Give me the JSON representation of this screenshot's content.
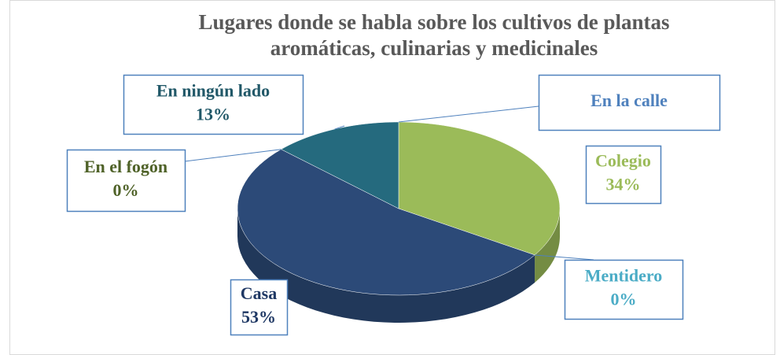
{
  "chart_data": {
    "type": "pie3d",
    "title": "Lugares donde se habla sobre los cultivos de plantas aromáticas, culinarias y medicinales",
    "categories": [
      "En la calle",
      "Colegio",
      "Mentidero",
      "Casa",
      "En el fogón",
      "En ningún lado"
    ],
    "values": [
      0,
      34,
      0,
      53,
      0,
      13
    ],
    "value_labels": [
      null,
      "34%",
      "0%",
      "53%",
      "0%",
      "13%"
    ],
    "colors": [
      "#4f81bd",
      "#9bbb59",
      "#4bacc6",
      "#2c4a78",
      "#6b8e23",
      "#256a7e"
    ],
    "label_colors": [
      "#4f81bd",
      "#9bbb59",
      "#4bacc6",
      "#1f3864",
      "#4f6228",
      "#215868"
    ]
  }
}
